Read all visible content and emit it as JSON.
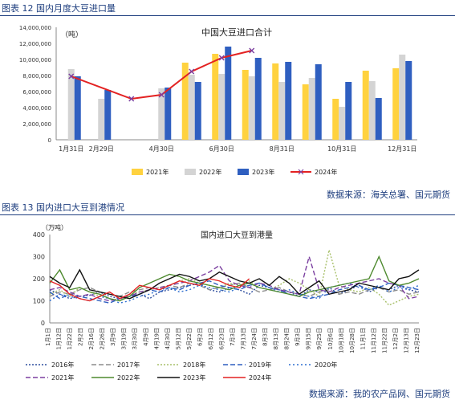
{
  "figure12": {
    "caption": "图表 12 国内月度大豆进口量",
    "source": "数据来源：海关总署、国元期货",
    "chart_data": {
      "type": "bar",
      "title": "中国大豆进口合计",
      "unit_label": "（吨）",
      "yticks": [
        "0",
        "2,000,000",
        "4,000,000",
        "6,000,000",
        "8,000,000",
        "10,000,000",
        "12,000,000",
        "14,000,000"
      ],
      "ylim": [
        0,
        14000000
      ],
      "x_tick_labels": [
        "1月31日",
        "2月29日",
        "4月30日",
        "6月30日",
        "8月31日",
        "10月31日",
        "12月31日"
      ],
      "months": [
        1,
        2,
        3,
        4,
        5,
        6,
        7,
        8,
        9,
        10,
        11,
        12
      ],
      "series": [
        {
          "name": "2021年",
          "color": "#ffd23f",
          "values": [
            null,
            null,
            null,
            null,
            9600000,
            10700000,
            8700000,
            9500000,
            6900000,
            5100000,
            8600000,
            8900000
          ]
        },
        {
          "name": "2022年",
          "color": "#d4d4d4",
          "values": [
            8800000,
            5100000,
            null,
            6400000,
            8100000,
            8200000,
            7900000,
            7200000,
            7700000,
            4100000,
            7300000,
            10600000
          ]
        },
        {
          "name": "2023年",
          "color": "#2f5fc0",
          "values": [
            7900000,
            6200000,
            null,
            6500000,
            7200000,
            11600000,
            10200000,
            9700000,
            9400000,
            7200000,
            5200000,
            9800000
          ]
        },
        {
          "name": "2024年",
          "color": "#e32222",
          "type": "line",
          "values": [
            7900000,
            null,
            5100000,
            5600000,
            8500000,
            10200000,
            11100000,
            null,
            null,
            null,
            null,
            null
          ]
        }
      ]
    }
  },
  "figure13": {
    "caption": "图表 13 国内进口大豆到港情况",
    "source": "数据来源：我的农产品网、国元期货",
    "chart_data": {
      "type": "line",
      "title": "国内进口大豆到港量",
      "unit_label": "（万吨）",
      "ylim": [
        0,
        400
      ],
      "yticks": [
        "0",
        "100",
        "200",
        "300",
        "400"
      ],
      "x_tick_labels": [
        "1月1日",
        "1月12日",
        "1月22日",
        "2月2日",
        "2月16日",
        "2月26日",
        "3月9日",
        "3月19日",
        "3月30日",
        "4月9日",
        "4月19日",
        "4月30日",
        "5月12日",
        "5月22日",
        "6月2日",
        "6月12日",
        "6月23日",
        "7月3日",
        "7月13日",
        "7月24日",
        "8月3日",
        "8月13日",
        "8月24日",
        "9月3日",
        "9月15日",
        "9月25日",
        "10月6日",
        "10月18日",
        "10月28日",
        "11月1日",
        "11月12日",
        "11月22日",
        "12月2日",
        "12月13日",
        "12月23日"
      ],
      "series": [
        {
          "name": "2016年",
          "color": "#2f4f9f",
          "dash": "2,2",
          "values": [
            150,
            130,
            110,
            120,
            125,
            140,
            120,
            110,
            120,
            130,
            110,
            140,
            150,
            160,
            170,
            180,
            150,
            140,
            160,
            150,
            130,
            170,
            160,
            150,
            140,
            120,
            150,
            140,
            160,
            130,
            150,
            170,
            140,
            160,
            150,
            170,
            150,
            140
          ]
        },
        {
          "name": "2017年",
          "color": "#8c8c8c",
          "dash": "6,3",
          "values": [
            120,
            140,
            130,
            150,
            160,
            140,
            130,
            120,
            140,
            150,
            160,
            150,
            170,
            160,
            180,
            170,
            150,
            160,
            170,
            180,
            160,
            140,
            150,
            160,
            140,
            130,
            120,
            140,
            150,
            130,
            140,
            130,
            150,
            160,
            140,
            150,
            130,
            140
          ]
        },
        {
          "name": "2018年",
          "color": "#a8c06a",
          "dash": "2,2",
          "values": [
            130,
            150,
            120,
            160,
            140,
            120,
            110,
            100,
            130,
            140,
            150,
            160,
            170,
            190,
            200,
            180,
            170,
            160,
            180,
            170,
            190,
            160,
            150,
            170,
            200,
            180,
            150,
            120,
            330,
            170,
            150,
            140,
            160,
            130,
            80,
            100,
            120,
            130
          ]
        },
        {
          "name": "2019年",
          "color": "#2f5fc0",
          "dash": "6,3",
          "values": [
            140,
            110,
            130,
            120,
            110,
            100,
            90,
            110,
            120,
            130,
            150,
            140,
            160,
            150,
            170,
            180,
            190,
            170,
            160,
            150,
            170,
            180,
            160,
            150,
            130,
            120,
            110,
            120,
            130,
            150,
            160,
            170,
            150,
            160,
            180,
            170,
            160,
            150
          ]
        },
        {
          "name": "2020年",
          "color": "#2f6fd0",
          "dash": "2,3",
          "values": [
            100,
            130,
            120,
            110,
            100,
            120,
            110,
            90,
            100,
            120,
            130,
            150,
            160,
            140,
            150,
            170,
            160,
            150,
            140,
            160,
            170,
            180,
            160,
            140,
            150,
            130,
            120,
            110,
            160,
            170,
            180,
            160,
            150,
            170,
            140,
            160,
            150,
            170
          ]
        },
        {
          "name": "2021年",
          "color": "#7b3fa0",
          "dash": "6,3",
          "values": [
            150,
            160,
            140,
            120,
            130,
            110,
            100,
            110,
            120,
            140,
            150,
            160,
            170,
            180,
            190,
            210,
            230,
            260,
            190,
            170,
            160,
            180,
            170,
            150,
            140,
            130,
            300,
            150,
            140,
            160,
            170,
            180,
            190,
            200,
            180,
            170,
            110,
            120
          ]
        },
        {
          "name": "2022年",
          "color": "#4e8a2f",
          "dash": "",
          "values": [
            180,
            240,
            150,
            160,
            140,
            130,
            110,
            100,
            120,
            160,
            180,
            200,
            220,
            210,
            190,
            180,
            170,
            160,
            150,
            170,
            180,
            160,
            150,
            140,
            130,
            120,
            140,
            150,
            160,
            170,
            180,
            190,
            200,
            300,
            190,
            170,
            180,
            200
          ]
        },
        {
          "name": "2023年",
          "color": "#111111",
          "dash": "",
          "values": [
            210,
            180,
            160,
            240,
            150,
            140,
            130,
            120,
            110,
            130,
            150,
            180,
            200,
            220,
            210,
            190,
            200,
            230,
            210,
            190,
            180,
            200,
            170,
            210,
            180,
            130,
            160,
            190,
            130,
            140,
            150,
            180,
            170,
            160,
            150,
            200,
            210,
            240
          ]
        },
        {
          "name": "2024年",
          "color": "#e32222",
          "dash": "",
          "values": [
            190,
            170,
            130,
            110,
            100,
            120,
            140,
            110,
            130,
            170,
            160,
            150,
            170,
            190,
            180,
            170,
            200,
            190,
            170,
            160,
            200
          ]
        }
      ]
    }
  }
}
